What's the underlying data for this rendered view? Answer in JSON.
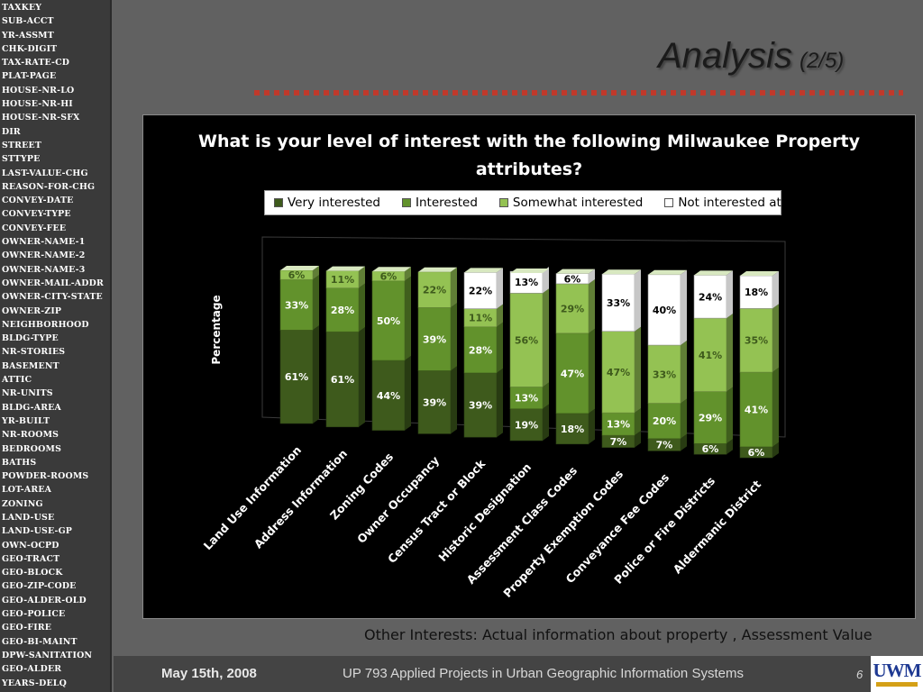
{
  "sidebar": {
    "fields": [
      "TAXKEY",
      "SUB-ACCT",
      "YR-ASSMT",
      "CHK-DIGIT",
      "TAX-RATE-CD",
      "PLAT-PAGE",
      "HOUSE-NR-LO",
      "HOUSE-NR-HI",
      "HOUSE-NR-SFX",
      "DIR",
      "STREET",
      "STTYPE",
      "LAST-VALUE-CHG",
      "REASON-FOR-CHG",
      "CONVEY-DATE",
      "CONVEY-TYPE",
      "CONVEY-FEE",
      "OWNER-NAME-1",
      "OWNER-NAME-2",
      "OWNER-NAME-3",
      "OWNER-MAIL-ADDR",
      "OWNER-CITY-STATE",
      "OWNER-ZIP",
      "NEIGHBORHOOD",
      "BLDG-TYPE",
      "NR-STORIES",
      "BASEMENT",
      "ATTIC",
      "NR-UNITS",
      "BLDG-AREA",
      "YR-BUILT",
      "NR-ROOMS",
      "BEDROOMS",
      "BATHS",
      "POWDER-ROOMS",
      "LOT-AREA",
      "ZONING",
      "LAND-USE",
      "LAND-USE-GP",
      "OWN-OCPD",
      "GEO-TRACT",
      "GEO-BLOCK",
      "GEO-ZIP-CODE",
      "GEO-ALDER-OLD",
      "GEO-POLICE",
      "GEO-FIRE",
      "GEO-BI-MAINT",
      "DPW-SANITATION",
      "GEO-ALDER",
      "YEARS-DELQ"
    ]
  },
  "header": {
    "title": "Analysis",
    "subtitle": "(2/5)"
  },
  "chart_data": {
    "type": "bar",
    "stacked": true,
    "three_d": true,
    "title": "What is your level of interest with the following Milwaukee Property attributes?",
    "ylabel": "Percentage",
    "xlabel": "",
    "ylim": [
      0,
      100
    ],
    "legend_position": "top",
    "categories": [
      "Land Use Information",
      "Address Information",
      "Zoning Codes",
      "Owner Occupancy",
      "Census Tract or Block",
      "Historic Designation",
      "Assessment Class Codes",
      "Property Exemption Codes",
      "Conveyance Fee Codes",
      "Police or Fire Districts",
      "Aldermanic District"
    ],
    "series": [
      {
        "name": "Very interested",
        "color": "#3e5a1c",
        "values": [
          61,
          61,
          44,
          39,
          39,
          19,
          18,
          7,
          7,
          6,
          6
        ]
      },
      {
        "name": "Interested",
        "color": "#62922c",
        "values": [
          33,
          28,
          50,
          39,
          28,
          13,
          47,
          13,
          20,
          29,
          41
        ]
      },
      {
        "name": "Somewhat interested",
        "color": "#94c253",
        "values": [
          6,
          11,
          6,
          22,
          11,
          56,
          29,
          47,
          33,
          41,
          35
        ]
      },
      {
        "name": "Not interested at all",
        "color": "#ffffff",
        "values": [
          0,
          0,
          0,
          0,
          22,
          13,
          6,
          33,
          40,
          24,
          18
        ]
      }
    ]
  },
  "footnote": "Other Interests: Actual information about property , Assessment Value",
  "footer": {
    "date": "May 15th, 2008",
    "course": "UP 793 Applied Projects in Urban Geographic Information Systems",
    "page": "6",
    "logo": "UWM"
  }
}
